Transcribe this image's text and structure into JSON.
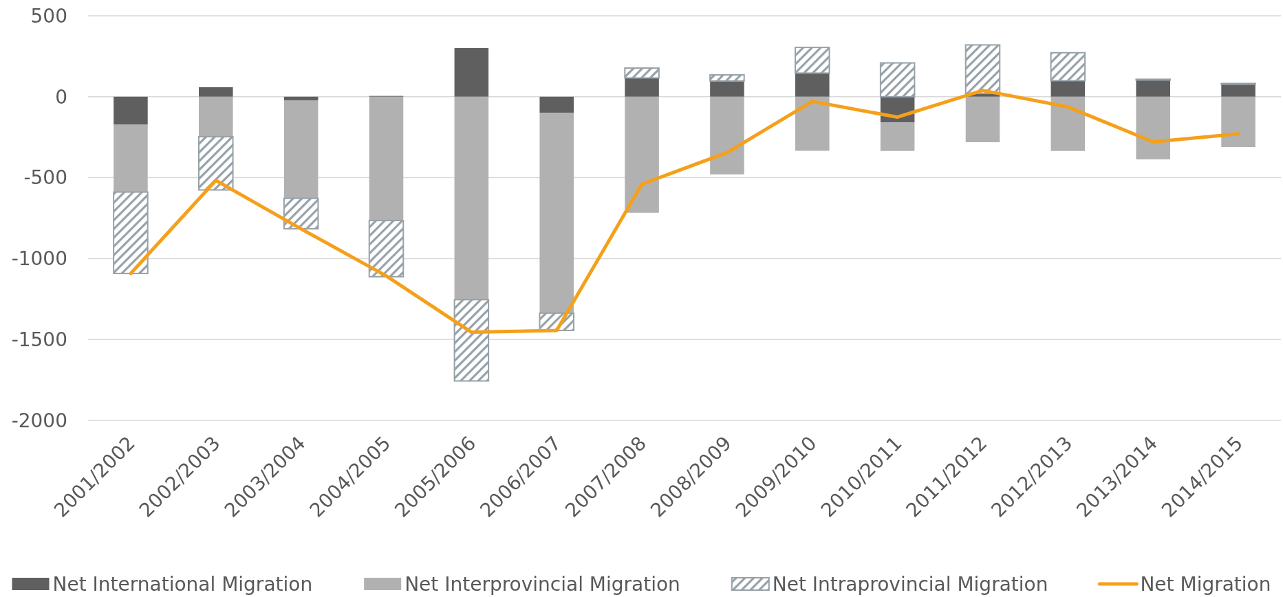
{
  "chart_data": {
    "type": "bar",
    "categories": [
      "2001/2002",
      "2002/2003",
      "2003/2004",
      "2004/2005",
      "2005/2006",
      "2006/2007",
      "2007/2008",
      "2008/2009",
      "2009/2010",
      "2010/2011",
      "2011/2012",
      "2012/2013",
      "2013/2014",
      "2014/2015"
    ],
    "series": [
      {
        "name": "Net International Migration",
        "color": "#5f5f5f",
        "values": [
          -173,
          59,
          -22,
          5,
          301,
          -100,
          116,
          97,
          146,
          -159,
          20,
          99,
          103,
          77
        ]
      },
      {
        "name": "Net Interprovincial Migration",
        "color": "#b1b1b1",
        "values": [
          -416,
          -247,
          -606,
          -765,
          -1254,
          -1237,
          -717,
          -480,
          -334,
          -176,
          -281,
          -335,
          -387,
          -311
        ]
      },
      {
        "name": "Net Intraprovincial Migration",
        "color": "#97a1a8",
        "values": [
          -503,
          -329,
          -188,
          -347,
          -502,
          -107,
          61,
          38,
          159,
          209,
          300,
          173,
          5,
          5
        ]
      },
      {
        "name": "Net Migration",
        "type": "line",
        "color": "#f5a01a",
        "values": [
          -1092,
          -517,
          -816,
          -1107,
          -1455,
          -1444,
          -540,
          -345,
          -29,
          -126,
          39,
          -63,
          -279,
          -229
        ]
      }
    ],
    "stacked": true,
    "ylim": [
      -2000,
      500
    ],
    "yticks": [
      -2000,
      -1500,
      -1000,
      -500,
      0,
      500
    ],
    "grid": "y",
    "legend": "bottom"
  }
}
